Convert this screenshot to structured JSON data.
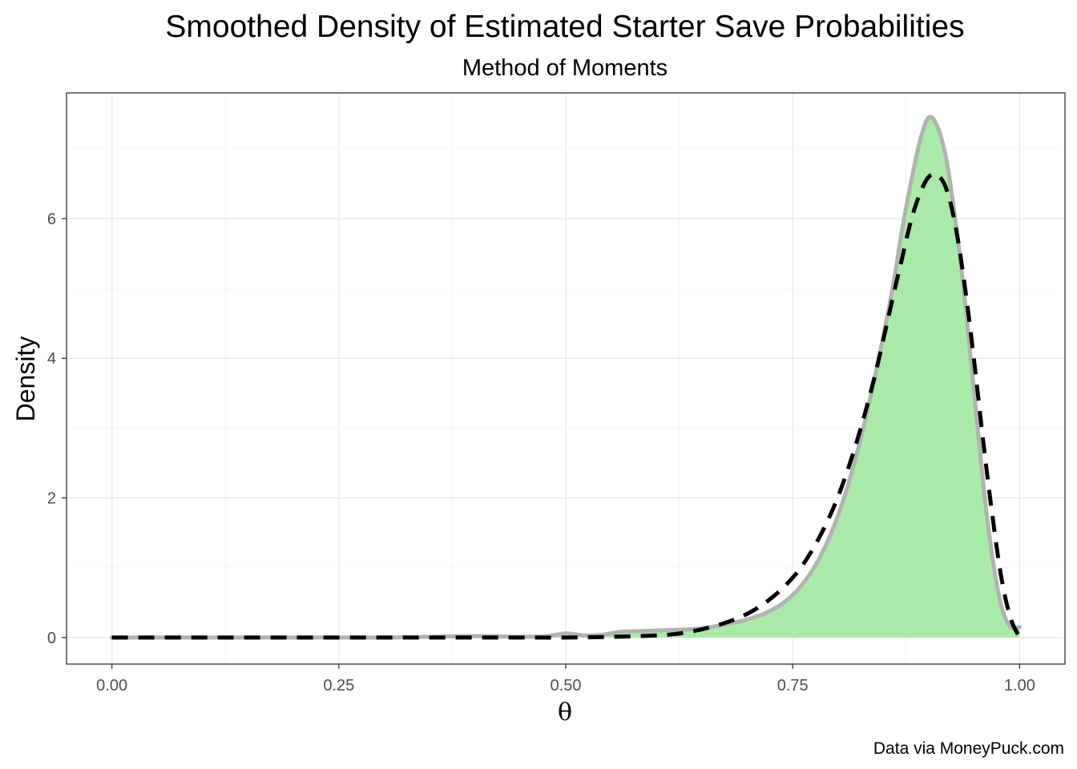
{
  "chart_data": {
    "type": "area",
    "title": "Smoothed Density of Estimated Starter Save Probabilities",
    "subtitle": "Method of Moments",
    "xlabel": "θ",
    "ylabel": "Density",
    "caption": "Data via MoneyPuck.com",
    "xlim": [
      -0.05,
      1.05
    ],
    "ylim": [
      -0.38,
      7.8
    ],
    "x_ticks": [
      0.0,
      0.25,
      0.5,
      0.75,
      1.0
    ],
    "x_tick_labels": [
      "0.00",
      "0.25",
      "0.50",
      "0.75",
      "1.00"
    ],
    "y_ticks": [
      0,
      2,
      4,
      6
    ],
    "y_tick_labels": [
      "0",
      "2",
      "4",
      "6"
    ],
    "grid": true,
    "colors": {
      "fill": "#aaeaa8",
      "outline": "#b2b2b2",
      "dashed": "#000000",
      "grid_major": "#ebebeb",
      "grid_minor": "#f5f5f5",
      "panel_border": "#333333"
    },
    "series": [
      {
        "style": "filled-density",
        "x": [
          0.0,
          0.1,
          0.2,
          0.3,
          0.35,
          0.4,
          0.45,
          0.48,
          0.5,
          0.52,
          0.54,
          0.56,
          0.58,
          0.6,
          0.62,
          0.64,
          0.66,
          0.68,
          0.7,
          0.72,
          0.74,
          0.76,
          0.78,
          0.8,
          0.82,
          0.84,
          0.86,
          0.87,
          0.88,
          0.89,
          0.9,
          0.91,
          0.92,
          0.93,
          0.94,
          0.95,
          0.96,
          0.97,
          0.98,
          0.99,
          1.0
        ],
        "y": [
          0.0,
          0.0,
          0.0,
          0.0,
          0.01,
          0.02,
          0.01,
          0.02,
          0.06,
          0.03,
          0.04,
          0.08,
          0.09,
          0.1,
          0.11,
          0.12,
          0.15,
          0.2,
          0.26,
          0.35,
          0.5,
          0.75,
          1.15,
          1.75,
          2.6,
          3.7,
          5.0,
          5.8,
          6.5,
          7.1,
          7.45,
          7.3,
          6.8,
          5.9,
          4.8,
          3.5,
          2.2,
          1.15,
          0.45,
          0.15,
          0.15
        ]
      },
      {
        "style": "dashed-line",
        "x": [
          0.0,
          0.1,
          0.2,
          0.3,
          0.35,
          0.4,
          0.45,
          0.5,
          0.55,
          0.6,
          0.62,
          0.64,
          0.66,
          0.68,
          0.7,
          0.72,
          0.74,
          0.76,
          0.78,
          0.8,
          0.82,
          0.84,
          0.86,
          0.87,
          0.88,
          0.89,
          0.9,
          0.91,
          0.92,
          0.93,
          0.94,
          0.95,
          0.96,
          0.97,
          0.98,
          0.99,
          1.0
        ],
        "y": [
          0.0,
          0.0,
          0.0,
          0.0,
          0.0,
          0.0,
          0.0,
          0.0,
          0.01,
          0.03,
          0.05,
          0.09,
          0.15,
          0.23,
          0.34,
          0.5,
          0.72,
          1.02,
          1.45,
          2.02,
          2.78,
          3.72,
          4.85,
          5.4,
          5.95,
          6.35,
          6.6,
          6.62,
          6.4,
          5.85,
          5.0,
          3.95,
          2.8,
          1.75,
          0.85,
          0.28,
          0.0
        ]
      }
    ]
  }
}
